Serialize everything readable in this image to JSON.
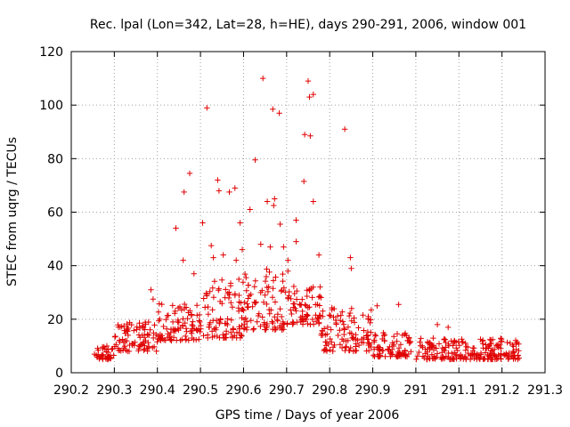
{
  "chart_data": {
    "type": "scatter",
    "title": "Rec. lpal (Lon=342, Lat=28, h=HE), days 290-291, 2006, window 001",
    "xlabel": "GPS time / Days of year 2006",
    "ylabel": "STEC from uqrg / TECUs",
    "xlim": [
      290.2,
      291.3
    ],
    "ylim": [
      0,
      120
    ],
    "xticks": [
      "290.2",
      "290.3",
      "290.4",
      "290.5",
      "290.6",
      "290.7",
      "290.8",
      "290.9",
      "291",
      "291.1",
      "291.2",
      "291.3"
    ],
    "yticks": [
      "0",
      "20",
      "40",
      "60",
      "80",
      "100",
      "120"
    ],
    "grid": true,
    "marker": "plus",
    "color": "#e00000",
    "outliers": [
      [
        290.385,
        31
      ],
      [
        290.39,
        27.5
      ],
      [
        290.443,
        54
      ],
      [
        290.46,
        42
      ],
      [
        290.462,
        67.5
      ],
      [
        290.475,
        74.5
      ],
      [
        290.485,
        37
      ],
      [
        290.505,
        56
      ],
      [
        290.515,
        99
      ],
      [
        290.525,
        47.5
      ],
      [
        290.53,
        43
      ],
      [
        290.54,
        72
      ],
      [
        290.543,
        68
      ],
      [
        290.553,
        44
      ],
      [
        290.567,
        67.5
      ],
      [
        290.58,
        69
      ],
      [
        290.583,
        42
      ],
      [
        290.592,
        56
      ],
      [
        290.597,
        46
      ],
      [
        290.615,
        61
      ],
      [
        290.627,
        79.5
      ],
      [
        290.64,
        48
      ],
      [
        290.645,
        110
      ],
      [
        290.655,
        64
      ],
      [
        290.662,
        47
      ],
      [
        290.668,
        98.5
      ],
      [
        290.672,
        65
      ],
      [
        290.67,
        62.5
      ],
      [
        290.683,
        97
      ],
      [
        290.685,
        55.5
      ],
      [
        290.693,
        47
      ],
      [
        290.703,
        42
      ],
      [
        290.703,
        38
      ],
      [
        290.722,
        57
      ],
      [
        290.722,
        49
      ],
      [
        290.74,
        71.5
      ],
      [
        290.742,
        89
      ],
      [
        290.75,
        109
      ],
      [
        290.753,
        103
      ],
      [
        290.755,
        88.5
      ],
      [
        290.762,
        104
      ],
      [
        290.762,
        64
      ],
      [
        290.775,
        44
      ],
      [
        290.835,
        91
      ],
      [
        290.848,
        43
      ],
      [
        290.85,
        39
      ],
      [
        290.91,
        25
      ],
      [
        290.96,
        25.5
      ],
      [
        291.05,
        18
      ],
      [
        291.075,
        17
      ]
    ],
    "series_bands": [
      {
        "x": [
          290.253,
          290.3
        ],
        "y": [
          5,
          10
        ]
      },
      {
        "x": [
          290.3,
          290.4
        ],
        "y": [
          8,
          19
        ]
      },
      {
        "x": [
          290.4,
          290.5
        ],
        "y": [
          12,
          26
        ]
      },
      {
        "x": [
          290.5,
          290.6
        ],
        "y": [
          13,
          35
        ]
      },
      {
        "x": [
          290.6,
          290.7
        ],
        "y": [
          16,
          40
        ]
      },
      {
        "x": [
          290.7,
          290.78
        ],
        "y": [
          18,
          33
        ]
      },
      {
        "x": [
          290.78,
          290.9
        ],
        "y": [
          8,
          25
        ]
      },
      {
        "x": [
          290.9,
          290.99
        ],
        "y": [
          6,
          15
        ]
      },
      {
        "x": [
          291.0,
          291.24
        ],
        "y": [
          5,
          13
        ]
      }
    ]
  }
}
